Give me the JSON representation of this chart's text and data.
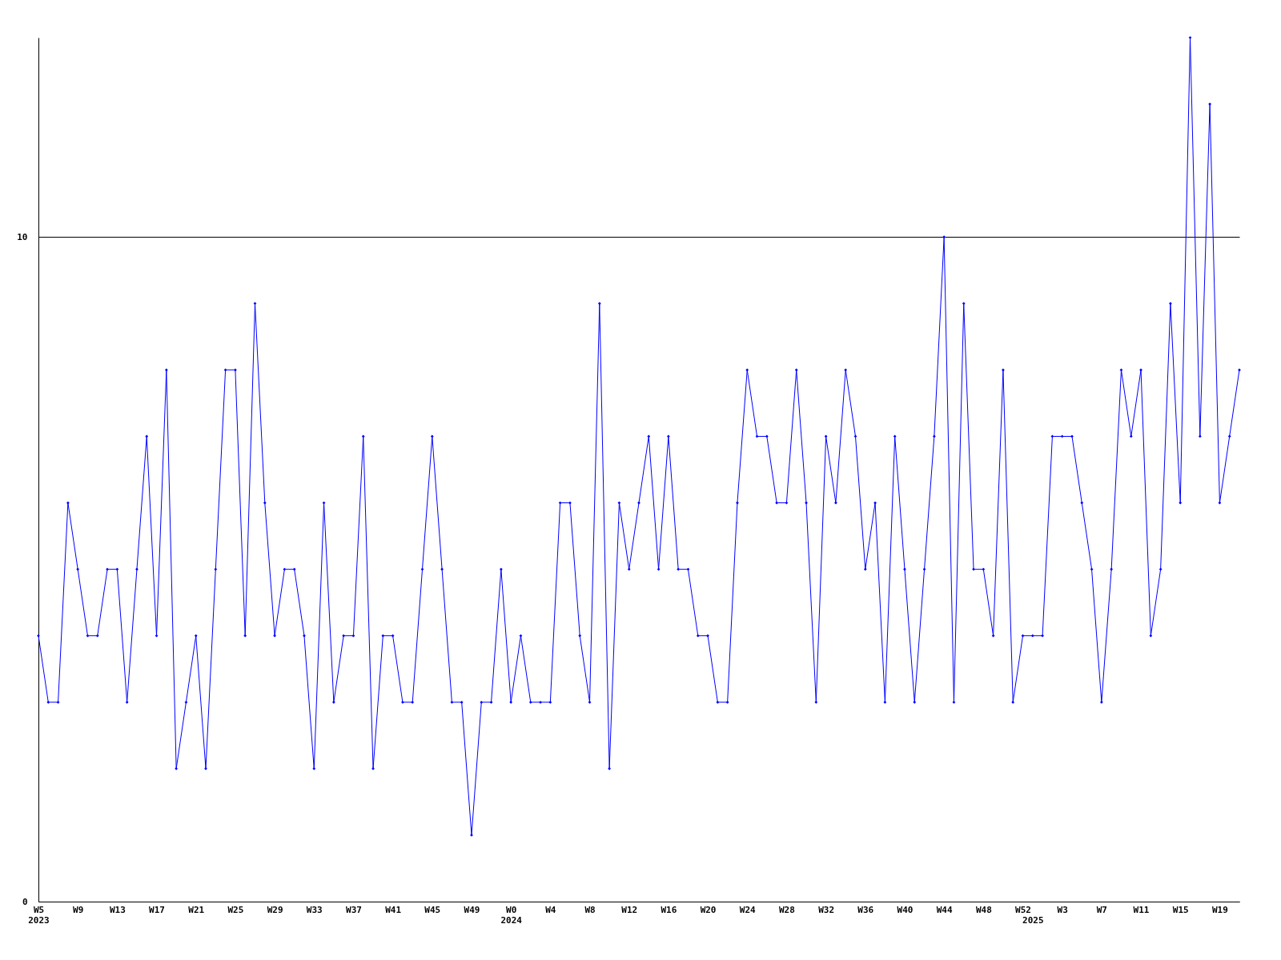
{
  "chart_data": {
    "type": "line",
    "categories": [
      "W5\n2023",
      null,
      null,
      null,
      "W9",
      null,
      null,
      null,
      "W13",
      null,
      null,
      null,
      "W17",
      null,
      null,
      null,
      "W21",
      null,
      null,
      null,
      "W25",
      null,
      null,
      null,
      "W29",
      null,
      null,
      null,
      "W33",
      null,
      null,
      null,
      "W37",
      null,
      null,
      null,
      "W41",
      null,
      null,
      null,
      "W45",
      null,
      null,
      null,
      "W49",
      null,
      null,
      null,
      "W0\n2024",
      null,
      null,
      null,
      "W4",
      null,
      null,
      null,
      "W8",
      null,
      null,
      null,
      "W12",
      null,
      null,
      null,
      "W16",
      null,
      null,
      null,
      "W20",
      null,
      null,
      null,
      "W24",
      null,
      null,
      null,
      "W28",
      null,
      null,
      null,
      "W32",
      null,
      null,
      null,
      "W36",
      null,
      null,
      null,
      "W40",
      null,
      null,
      null,
      "W44",
      null,
      null,
      null,
      "W48",
      null,
      null,
      null,
      "W52",
      "\n2025",
      null,
      null,
      "W3",
      null,
      null,
      null,
      "W7",
      null,
      null,
      null,
      "W11",
      null,
      null,
      null,
      "W15",
      null,
      null,
      null,
      "W19",
      null,
      null
    ],
    "series": [
      {
        "color": "#0000ff",
        "values": [
          4,
          3,
          3,
          6,
          5,
          4,
          4,
          5,
          5,
          3,
          5,
          7,
          4,
          8,
          2,
          3,
          4,
          2,
          5,
          8,
          8,
          4,
          9,
          6,
          4,
          5,
          5,
          4,
          2,
          6,
          3,
          4,
          4,
          7,
          2,
          4,
          4,
          3,
          3,
          5,
          7,
          5,
          3,
          3,
          1,
          3,
          3,
          5,
          3,
          4,
          3,
          3,
          3,
          6,
          6,
          4,
          3,
          9,
          2,
          6,
          5,
          6,
          7,
          5,
          7,
          5,
          5,
          4,
          4,
          3,
          3,
          6,
          8,
          7,
          7,
          6,
          6,
          8,
          6,
          3,
          7,
          6,
          8,
          7,
          5,
          6,
          3,
          7,
          5,
          3,
          5,
          7,
          10,
          3,
          9,
          5,
          5,
          4,
          8,
          3,
          4,
          4,
          4,
          7,
          7,
          7,
          6,
          5,
          3,
          5,
          8,
          7,
          8,
          4,
          5,
          9,
          6,
          13,
          7,
          12,
          6,
          7,
          8
        ]
      }
    ],
    "ylim": [
      0,
      13
    ],
    "yticks": [
      0,
      10
    ],
    "grid": "y",
    "marker": "diamond",
    "line_style": "solid"
  }
}
